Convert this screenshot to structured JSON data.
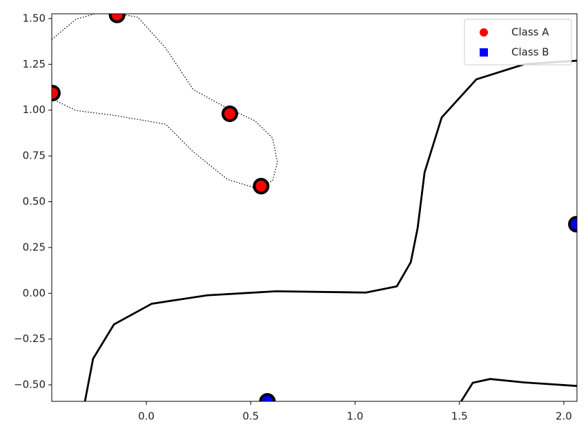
{
  "chart_data": {
    "type": "scatter",
    "xlim": [
      -0.453,
      2.063
    ],
    "ylim": [
      -0.59,
      1.526
    ],
    "xticks": [
      {
        "value": 0,
        "label": "0.0"
      },
      0.5,
      {
        "value": 1,
        "label": "1.0"
      },
      1.5,
      {
        "value": 2,
        "label": "2.0"
      }
    ],
    "yticks": [
      {
        "value": -0.5,
        "label": "−0.50"
      },
      {
        "value": -0.25,
        "label": "−0.25"
      },
      {
        "value": 0,
        "label": "0.00"
      },
      0.25,
      {
        "value": 0.5,
        "label": "0.50"
      },
      0.75,
      {
        "value": 1,
        "label": "1.00"
      },
      1.25,
      {
        "value": 1.5,
        "label": "1.50"
      }
    ],
    "legend": "upper right",
    "series": [
      {
        "name": "Class A",
        "color": "#ff0000",
        "marker": "circle",
        "x": [
          -0.45,
          -0.14,
          0.4,
          0.55
        ],
        "y": [
          1.093,
          1.52,
          0.98,
          0.585
        ]
      },
      {
        "name": "Class B",
        "color": "#0000ff",
        "marker": "square",
        "x": [
          2.06,
          0.58
        ],
        "y": [
          0.377,
          -0.59
        ]
      }
    ],
    "contours": [
      {
        "style": "solid",
        "color": "#000000",
        "x": [
          -0.294,
          -0.255,
          -0.155,
          0.026,
          0.291,
          0.622,
          1.052,
          1.2,
          1.267,
          1.3,
          1.333,
          1.415,
          1.581,
          1.812,
          2.063
        ],
        "y": [
          -0.59,
          -0.357,
          -0.17,
          -0.057,
          -0.011,
          0.011,
          0.004,
          0.038,
          0.17,
          0.358,
          0.66,
          0.96,
          1.168,
          1.251,
          1.27
        ]
      },
      {
        "style": "solid",
        "color": "#000000",
        "x": [
          1.508,
          1.564,
          1.647,
          1.812,
          2.063
        ],
        "y": [
          -0.59,
          -0.489,
          -0.468,
          -0.487,
          -0.506
        ]
      },
      {
        "style": "dotted",
        "color": "#000000",
        "x": [
          -0.453,
          -0.337,
          -0.205,
          -0.04,
          0.093,
          0.225,
          0.357,
          0.52,
          0.605,
          0.628,
          0.605,
          0.52,
          0.39,
          0.225,
          0.093,
          -0.139,
          -0.337,
          -0.453
        ],
        "y": [
          1.386,
          1.496,
          1.54,
          1.507,
          1.338,
          1.112,
          1.029,
          0.942,
          0.848,
          0.716,
          0.614,
          0.576,
          0.621,
          0.772,
          0.923,
          0.969,
          0.998,
          1.062
        ]
      }
    ]
  }
}
